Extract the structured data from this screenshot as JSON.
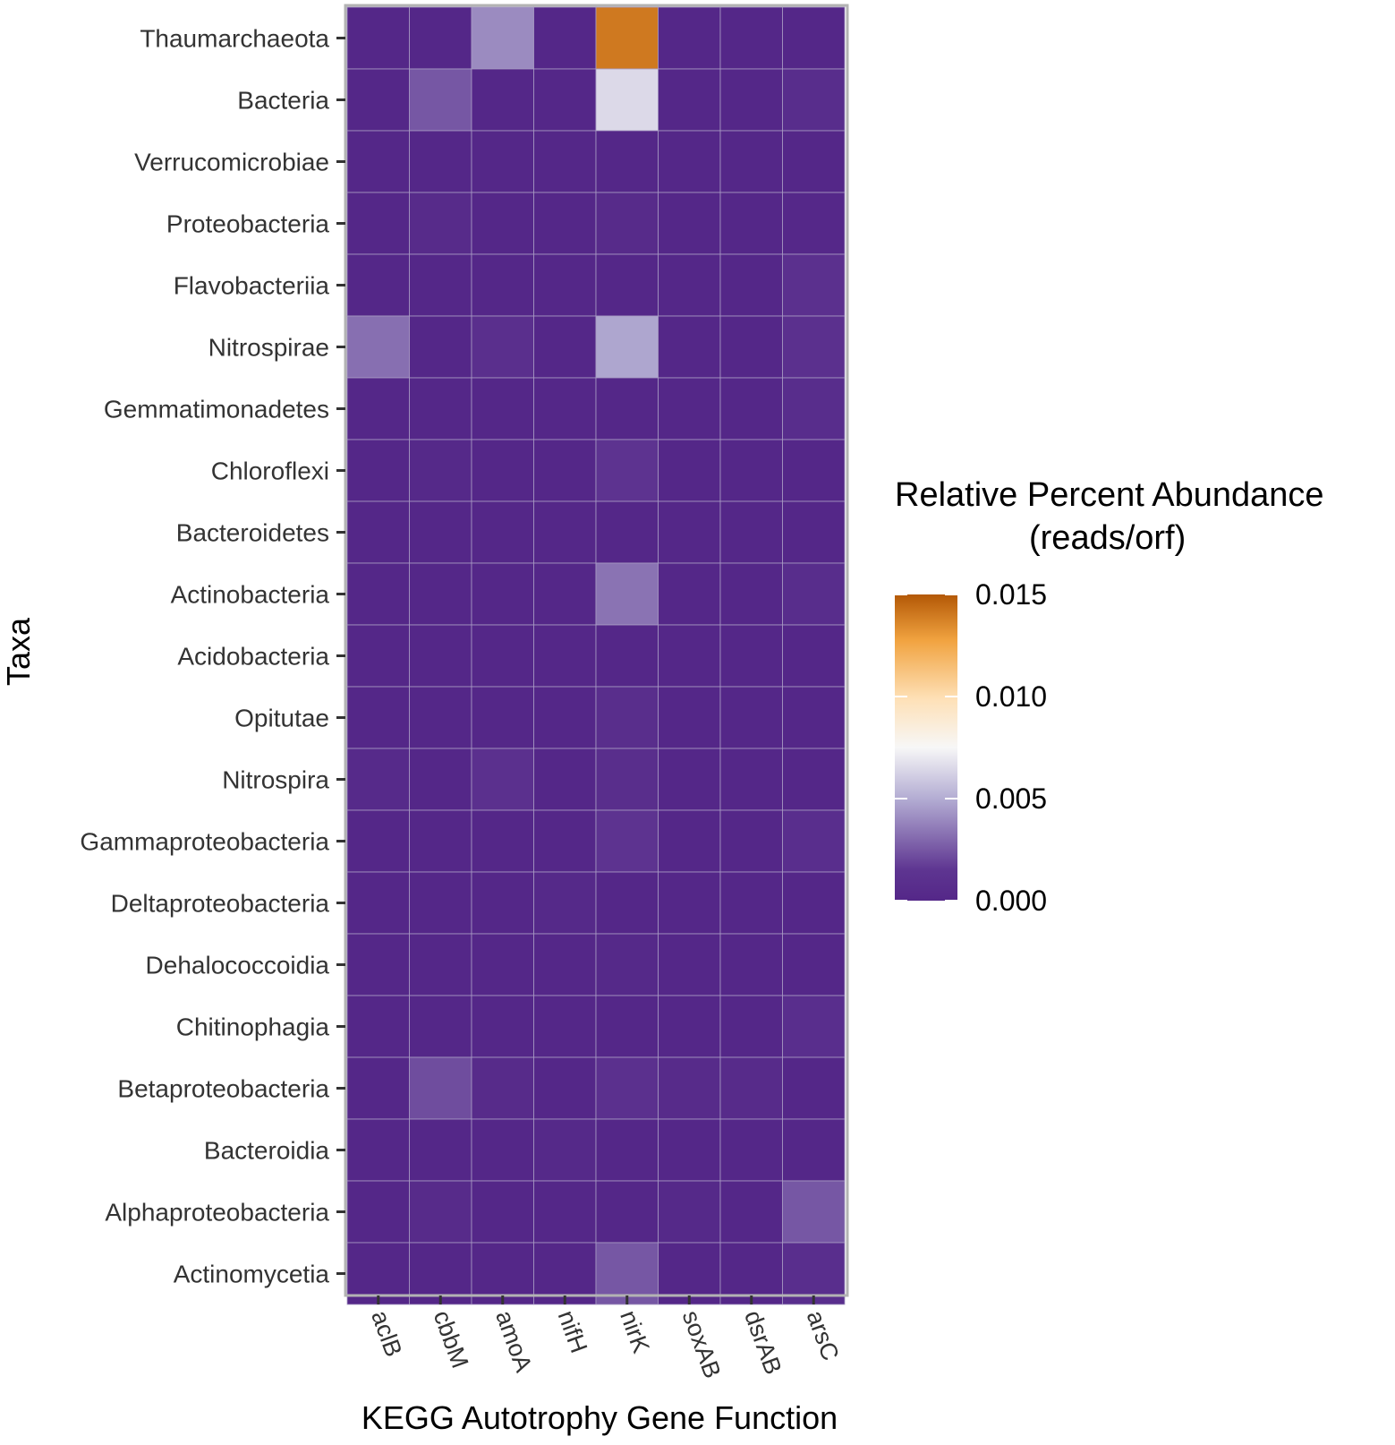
{
  "chart_data": {
    "type": "heatmap",
    "title": "",
    "xlabel": "KEGG Autotrophy Gene Function",
    "ylabel": "Taxa",
    "x": [
      "aclB",
      "cbbM",
      "amoA",
      "nifH",
      "nirK",
      "soxAB",
      "dsrAB",
      "arsC"
    ],
    "y": [
      "Thaumarchaeota",
      "Bacteria",
      "Verrucomicrobiae",
      "Proteobacteria",
      "Flavobacteriia",
      "Nitrospirae",
      "Gemmatimonadetes",
      "Chloroflexi",
      "Bacteroidetes",
      "Actinobacteria",
      "Acidobacteria",
      "Opitutae",
      "Nitrospira",
      "Gammaproteobacteria",
      "Deltaproteobacteria",
      "Dehalococcoidia",
      "Chitinophagia",
      "Betaproteobacteria",
      "Bacteroidia",
      "Alphaproteobacteria",
      "Actinomycetia"
    ],
    "values": [
      [
        0.0,
        0.0,
        0.004,
        0.0,
        0.014,
        0.0,
        0.0,
        0.0
      ],
      [
        0.0,
        0.0025,
        0.0,
        0.0,
        0.0065,
        0.0,
        0.0,
        0.0006
      ],
      [
        0.0,
        0.0,
        0.0,
        0.0,
        0.0,
        0.0,
        0.0,
        0.0
      ],
      [
        0.0,
        0.0004,
        0.0,
        0.0,
        0.0004,
        0.0,
        0.0,
        0.0001
      ],
      [
        0.0,
        0.0,
        0.0,
        0.0,
        0.0,
        0.0,
        0.0,
        0.001
      ],
      [
        0.0032,
        0.0,
        0.0009,
        0.0,
        0.0048,
        0.0,
        0.0,
        0.001
      ],
      [
        0.0,
        0.0,
        0.0,
        0.0,
        0.0,
        0.0,
        0.0,
        0.0006
      ],
      [
        0.0,
        0.0002,
        0.0,
        0.0,
        0.0013,
        0.0,
        0.0,
        0.0
      ],
      [
        0.0,
        0.0,
        0.0,
        0.0,
        0.0,
        0.0,
        0.0,
        0.0
      ],
      [
        0.0,
        0.0,
        0.0,
        0.0,
        0.0033,
        0.0,
        0.0,
        0.0006
      ],
      [
        0.0,
        0.0,
        0.0,
        0.0,
        0.0,
        0.0,
        0.0,
        0.0
      ],
      [
        0.0,
        0.0,
        0.0,
        0.0,
        0.0007,
        0.0,
        0.0,
        0.0
      ],
      [
        0.0003,
        0.0,
        0.001,
        0.0,
        0.0007,
        0.0,
        0.0,
        0.0
      ],
      [
        0.0,
        0.0,
        0.0,
        0.0,
        0.0013,
        0.0,
        0.0,
        0.0008
      ],
      [
        0.0,
        0.0,
        0.0,
        0.0002,
        0.0,
        0.0,
        0.0,
        0.0
      ],
      [
        0.0,
        0.0,
        0.0,
        0.0,
        0.0002,
        0.0,
        0.0,
        0.0
      ],
      [
        0.0,
        0.0,
        0.0,
        0.0,
        0.0,
        0.0,
        0.0,
        0.0008
      ],
      [
        0.0,
        0.0022,
        0.0004,
        0.0,
        0.001,
        0.0004,
        0.0004,
        0.0
      ],
      [
        0.0,
        0.0,
        0.0,
        0.0002,
        0.0,
        0.0,
        0.0,
        0.0
      ],
      [
        0.0,
        0.0004,
        0.0,
        0.0,
        0.0,
        0.0002,
        0.0,
        0.0025
      ],
      [
        0.0,
        0.0,
        0.0,
        0.0,
        0.0025,
        0.0,
        0.0,
        0.0008
      ]
    ],
    "colorbar": {
      "title_line1": "Relative Percent Abundance",
      "title_line2": "(reads/orf)",
      "min": 0.0,
      "max": 0.015,
      "ticks": [
        0.0,
        0.005,
        0.01,
        0.015
      ],
      "tick_labels": [
        "0.000",
        "0.005",
        "0.010",
        "0.015"
      ],
      "colors": [
        "#542788",
        "#ffffff",
        "#b35806"
      ]
    },
    "legend_position": "right"
  }
}
